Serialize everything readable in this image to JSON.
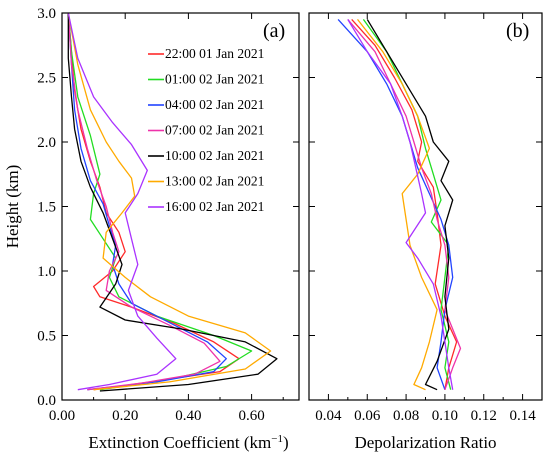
{
  "chart_data": [
    {
      "panel_label": "(a)",
      "type": "line",
      "xlabel": "Extinction  Coefficient  (km",
      "xlabel_sup": "−1",
      "xlabel_suffix": ")",
      "ylabel": "Height (km)",
      "xlim": [
        0.0,
        0.75
      ],
      "ylim": [
        0.0,
        3.0
      ],
      "xticks": [
        "0.00",
        "0.20",
        "0.40",
        "0.60"
      ],
      "yticks": [
        "0.0",
        "0.5",
        "1.0",
        "1.5",
        "2.0",
        "2.5",
        "3.0"
      ],
      "legend_position": "top-right",
      "series": [
        {
          "name": "22:00 01 Jan 2021",
          "color": "#ff2a2a",
          "points": [
            [
              0.02,
              3.0
            ],
            [
              0.03,
              2.7
            ],
            [
              0.04,
              2.4
            ],
            [
              0.06,
              2.1
            ],
            [
              0.09,
              1.85
            ],
            [
              0.12,
              1.65
            ],
            [
              0.14,
              1.45
            ],
            [
              0.18,
              1.3
            ],
            [
              0.2,
              1.15
            ],
            [
              0.16,
              1.0
            ],
            [
              0.1,
              0.88
            ],
            [
              0.12,
              0.8
            ],
            [
              0.22,
              0.72
            ],
            [
              0.35,
              0.6
            ],
            [
              0.48,
              0.45
            ],
            [
              0.56,
              0.32
            ],
            [
              0.5,
              0.22
            ],
            [
              0.28,
              0.14
            ],
            [
              0.1,
              0.08
            ]
          ]
        },
        {
          "name": "01:00 02 Jan 2021",
          "color": "#22dd22",
          "points": [
            [
              0.02,
              3.0
            ],
            [
              0.03,
              2.7
            ],
            [
              0.05,
              2.35
            ],
            [
              0.09,
              2.05
            ],
            [
              0.12,
              1.75
            ],
            [
              0.1,
              1.6
            ],
            [
              0.09,
              1.4
            ],
            [
              0.13,
              1.25
            ],
            [
              0.17,
              1.1
            ],
            [
              0.15,
              0.95
            ],
            [
              0.18,
              0.8
            ],
            [
              0.3,
              0.65
            ],
            [
              0.48,
              0.5
            ],
            [
              0.6,
              0.38
            ],
            [
              0.52,
              0.26
            ],
            [
              0.34,
              0.16
            ],
            [
              0.12,
              0.08
            ]
          ]
        },
        {
          "name": "04:00 02 Jan 2021",
          "color": "#2244ff",
          "points": [
            [
              0.02,
              3.0
            ],
            [
              0.03,
              2.6
            ],
            [
              0.04,
              2.25
            ],
            [
              0.06,
              1.95
            ],
            [
              0.09,
              1.7
            ],
            [
              0.13,
              1.52
            ],
            [
              0.15,
              1.35
            ],
            [
              0.17,
              1.2
            ],
            [
              0.16,
              1.05
            ],
            [
              0.18,
              0.9
            ],
            [
              0.22,
              0.75
            ],
            [
              0.34,
              0.6
            ],
            [
              0.46,
              0.45
            ],
            [
              0.52,
              0.32
            ],
            [
              0.48,
              0.22
            ],
            [
              0.3,
              0.14
            ],
            [
              0.08,
              0.08
            ]
          ]
        },
        {
          "name": "07:00 02 Jan 2021",
          "color": "#ee33aa",
          "points": [
            [
              0.02,
              3.0
            ],
            [
              0.03,
              2.6
            ],
            [
              0.05,
              2.25
            ],
            [
              0.08,
              1.95
            ],
            [
              0.11,
              1.7
            ],
            [
              0.14,
              1.5
            ],
            [
              0.16,
              1.3
            ],
            [
              0.18,
              1.15
            ],
            [
              0.15,
              1.0
            ],
            [
              0.14,
              0.85
            ],
            [
              0.22,
              0.72
            ],
            [
              0.34,
              0.58
            ],
            [
              0.45,
              0.44
            ],
            [
              0.5,
              0.3
            ],
            [
              0.42,
              0.2
            ],
            [
              0.25,
              0.13
            ],
            [
              0.08,
              0.08
            ]
          ]
        },
        {
          "name": "10:00 02 Jan 2021",
          "color": "#000000",
          "points": [
            [
              0.02,
              3.0
            ],
            [
              0.02,
              2.65
            ],
            [
              0.03,
              2.35
            ],
            [
              0.04,
              2.1
            ],
            [
              0.06,
              1.85
            ],
            [
              0.09,
              1.65
            ],
            [
              0.13,
              1.45
            ],
            [
              0.16,
              1.25
            ],
            [
              0.19,
              1.05
            ],
            [
              0.17,
              0.9
            ],
            [
              0.12,
              0.72
            ],
            [
              0.2,
              0.62
            ],
            [
              0.38,
              0.55
            ],
            [
              0.58,
              0.45
            ],
            [
              0.68,
              0.32
            ],
            [
              0.62,
              0.2
            ],
            [
              0.4,
              0.12
            ],
            [
              0.12,
              0.07
            ]
          ]
        },
        {
          "name": "13:00 02 Jan 2021",
          "color": "#ffaa00",
          "points": [
            [
              0.02,
              3.0
            ],
            [
              0.05,
              2.6
            ],
            [
              0.09,
              2.25
            ],
            [
              0.14,
              2.0
            ],
            [
              0.18,
              1.85
            ],
            [
              0.22,
              1.72
            ],
            [
              0.23,
              1.58
            ],
            [
              0.19,
              1.45
            ],
            [
              0.14,
              1.3
            ],
            [
              0.13,
              1.1
            ],
            [
              0.2,
              0.95
            ],
            [
              0.28,
              0.8
            ],
            [
              0.4,
              0.65
            ],
            [
              0.58,
              0.52
            ],
            [
              0.66,
              0.38
            ],
            [
              0.58,
              0.24
            ],
            [
              0.34,
              0.14
            ],
            [
              0.1,
              0.08
            ]
          ]
        },
        {
          "name": "16:00 02 Jan 2021",
          "color": "#aa33ff",
          "points": [
            [
              0.02,
              3.0
            ],
            [
              0.05,
              2.65
            ],
            [
              0.1,
              2.35
            ],
            [
              0.16,
              2.15
            ],
            [
              0.22,
              1.98
            ],
            [
              0.27,
              1.78
            ],
            [
              0.24,
              1.6
            ],
            [
              0.2,
              1.45
            ],
            [
              0.22,
              1.25
            ],
            [
              0.24,
              1.05
            ],
            [
              0.21,
              0.85
            ],
            [
              0.24,
              0.65
            ],
            [
              0.3,
              0.48
            ],
            [
              0.36,
              0.32
            ],
            [
              0.3,
              0.2
            ],
            [
              0.15,
              0.12
            ],
            [
              0.05,
              0.08
            ]
          ]
        }
      ]
    },
    {
      "panel_label": "(b)",
      "type": "line",
      "xlabel": "Depolarization  Ratio",
      "xlim": [
        0.03,
        0.15
      ],
      "ylim": [
        0.0,
        3.0
      ],
      "xticks": [
        "0.04",
        "0.06",
        "0.08",
        "0.10",
        "0.12",
        "0.14"
      ],
      "series": [
        {
          "name": "22:00 01 Jan 2021",
          "color": "#ff2a2a",
          "points": [
            [
              0.052,
              2.95
            ],
            [
              0.064,
              2.75
            ],
            [
              0.074,
              2.5
            ],
            [
              0.083,
              2.25
            ],
            [
              0.088,
              2.0
            ],
            [
              0.086,
              1.85
            ],
            [
              0.094,
              1.65
            ],
            [
              0.096,
              1.45
            ],
            [
              0.098,
              1.2
            ],
            [
              0.095,
              0.9
            ],
            [
              0.1,
              0.65
            ],
            [
              0.106,
              0.45
            ],
            [
              0.102,
              0.25
            ],
            [
              0.1,
              0.08
            ]
          ]
        },
        {
          "name": "01:00 02 Jan 2021",
          "color": "#22dd22",
          "points": [
            [
              0.058,
              2.95
            ],
            [
              0.07,
              2.7
            ],
            [
              0.078,
              2.45
            ],
            [
              0.086,
              2.2
            ],
            [
              0.09,
              1.95
            ],
            [
              0.094,
              1.75
            ],
            [
              0.098,
              1.55
            ],
            [
              0.093,
              1.38
            ],
            [
              0.102,
              1.2
            ],
            [
              0.1,
              0.95
            ],
            [
              0.098,
              0.7
            ],
            [
              0.102,
              0.45
            ],
            [
              0.1,
              0.25
            ],
            [
              0.103,
              0.08
            ]
          ]
        },
        {
          "name": "04:00 02 Jan 2021",
          "color": "#2244ff",
          "points": [
            [
              0.045,
              2.95
            ],
            [
              0.06,
              2.7
            ],
            [
              0.07,
              2.45
            ],
            [
              0.078,
              2.2
            ],
            [
              0.082,
              2.0
            ],
            [
              0.086,
              1.8
            ],
            [
              0.092,
              1.6
            ],
            [
              0.098,
              1.4
            ],
            [
              0.102,
              1.2
            ],
            [
              0.104,
              0.95
            ],
            [
              0.1,
              0.7
            ],
            [
              0.098,
              0.45
            ],
            [
              0.096,
              0.25
            ],
            [
              0.1,
              0.08
            ]
          ]
        },
        {
          "name": "07:00 02 Jan 2021",
          "color": "#ee33aa",
          "points": [
            [
              0.05,
              2.95
            ],
            [
              0.064,
              2.7
            ],
            [
              0.072,
              2.45
            ],
            [
              0.08,
              2.2
            ],
            [
              0.084,
              2.0
            ],
            [
              0.088,
              1.8
            ],
            [
              0.093,
              1.6
            ],
            [
              0.096,
              1.4
            ],
            [
              0.1,
              1.2
            ],
            [
              0.102,
              0.95
            ],
            [
              0.1,
              0.7
            ],
            [
              0.108,
              0.4
            ],
            [
              0.104,
              0.25
            ],
            [
              0.1,
              0.08
            ]
          ]
        },
        {
          "name": "10:00 02 Jan 2021",
          "color": "#000000",
          "points": [
            [
              0.06,
              2.95
            ],
            [
              0.07,
              2.7
            ],
            [
              0.08,
              2.45
            ],
            [
              0.09,
              2.2
            ],
            [
              0.094,
              2.0
            ],
            [
              0.102,
              1.85
            ],
            [
              0.098,
              1.7
            ],
            [
              0.104,
              1.55
            ],
            [
              0.1,
              1.35
            ],
            [
              0.102,
              1.1
            ],
            [
              0.1,
              0.8
            ],
            [
              0.102,
              0.55
            ],
            [
              0.096,
              0.3
            ],
            [
              0.09,
              0.12
            ],
            [
              0.096,
              0.08
            ]
          ]
        },
        {
          "name": "13:00 02 Jan 2021",
          "color": "#ffaa00",
          "points": [
            [
              0.055,
              2.95
            ],
            [
              0.068,
              2.7
            ],
            [
              0.078,
              2.45
            ],
            [
              0.086,
              2.2
            ],
            [
              0.092,
              1.95
            ],
            [
              0.086,
              1.75
            ],
            [
              0.078,
              1.6
            ],
            [
              0.08,
              1.4
            ],
            [
              0.082,
              1.2
            ],
            [
              0.088,
              0.95
            ],
            [
              0.096,
              0.7
            ],
            [
              0.092,
              0.45
            ],
            [
              0.088,
              0.25
            ],
            [
              0.084,
              0.12
            ],
            [
              0.09,
              0.08
            ]
          ]
        },
        {
          "name": "16:00 02 Jan 2021",
          "color": "#aa33ff",
          "points": [
            [
              0.05,
              2.95
            ],
            [
              0.06,
              2.7
            ],
            [
              0.072,
              2.45
            ],
            [
              0.078,
              2.2
            ],
            [
              0.082,
              2.0
            ],
            [
              0.085,
              1.8
            ],
            [
              0.088,
              1.6
            ],
            [
              0.09,
              1.45
            ],
            [
              0.08,
              1.22
            ],
            [
              0.086,
              1.1
            ],
            [
              0.094,
              0.9
            ],
            [
              0.098,
              0.65
            ],
            [
              0.1,
              0.45
            ],
            [
              0.102,
              0.25
            ],
            [
              0.104,
              0.08
            ]
          ]
        }
      ]
    }
  ]
}
